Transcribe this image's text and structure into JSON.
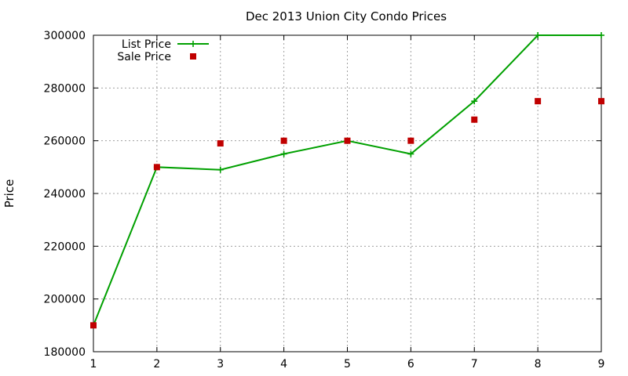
{
  "chart_data": {
    "type": "line",
    "title": "Dec 2013 Union City Condo Prices",
    "xlabel": "",
    "ylabel": "Price",
    "x": [
      1,
      2,
      3,
      4,
      5,
      6,
      7,
      8,
      9
    ],
    "xlim": [
      1,
      9
    ],
    "ylim": [
      180000,
      300000
    ],
    "x_ticks": [
      "1",
      "2",
      "3",
      "4",
      "5",
      "6",
      "7",
      "8",
      "9"
    ],
    "y_ticks": [
      "180000",
      "200000",
      "220000",
      "240000",
      "260000",
      "280000",
      "300000"
    ],
    "grid": true,
    "legend_position": "top-left",
    "series": [
      {
        "name": "List Price",
        "style": "lines+points",
        "marker": "plus",
        "color": "#00a000",
        "values": [
          190000,
          250000,
          249000,
          255000,
          260000,
          255000,
          275000,
          300000,
          300000
        ]
      },
      {
        "name": "Sale Price",
        "style": "points",
        "marker": "square",
        "color": "#c00000",
        "values": [
          190000,
          250000,
          259000,
          260000,
          260000,
          260000,
          268000,
          275000,
          275000
        ]
      }
    ]
  }
}
